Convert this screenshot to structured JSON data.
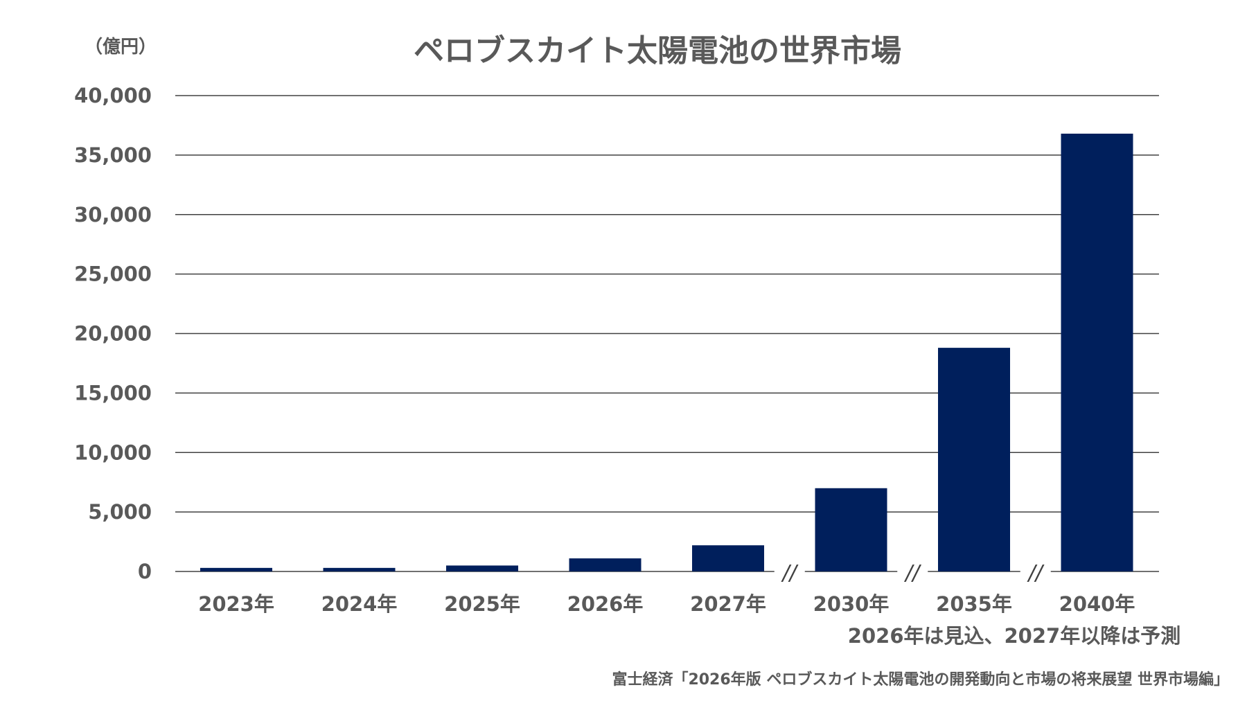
{
  "chart_data": {
    "type": "bar",
    "title": "ペロブスカイト太陽電池の世界市場",
    "unit_label": "（億円）",
    "categories": [
      "2023年",
      "2024年",
      "2025年",
      "2026年",
      "2027年",
      "2030年",
      "2035年",
      "2040年"
    ],
    "values": [
      300,
      300,
      500,
      1100,
      2200,
      7000,
      18800,
      36800
    ],
    "ylim": [
      0,
      40000
    ],
    "y_ticks": [
      "0",
      "5,000",
      "10,000",
      "15,000",
      "20,000",
      "25,000",
      "30,000",
      "35,000",
      "40,000"
    ],
    "y_tick_values": [
      0,
      5000,
      10000,
      15000,
      20000,
      25000,
      30000,
      35000,
      40000
    ],
    "axis_break_symbol": "//",
    "axis_breaks_after_index": [
      4,
      5,
      6
    ],
    "grid": true,
    "note": "2026年は見込、2027年以降は予測",
    "source": "富士経済「2026年版 ペロブスカイト太陽電池の開発動向と市場の将来展望 世界市場編」",
    "colors": {
      "bar": "#001f5c",
      "grid": "#404040",
      "text": "#595959"
    }
  }
}
